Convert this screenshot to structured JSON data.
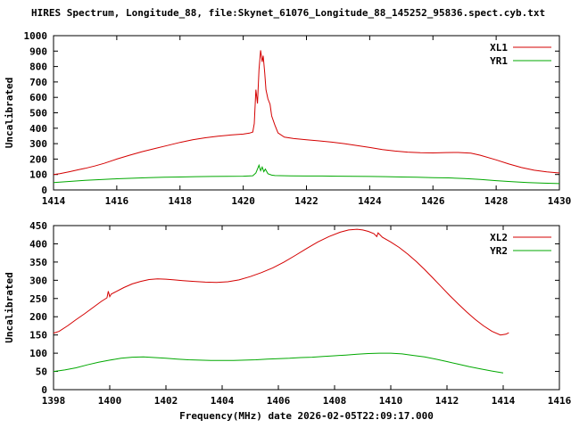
{
  "title": "HIRES Spectrum, Longitude_88, file:Skynet_61076_Longitude_88_145252_95836.spect.cyb.txt",
  "colors": {
    "red": "#d40000",
    "green": "#00a800",
    "axis": "#000000",
    "background": "#ffffff"
  },
  "chart_data": [
    {
      "type": "line",
      "title": "HIRES Spectrum, Longitude_88, file:Skynet_61076_Longitude_88_145252_95836.spect.cyb.txt",
      "xlabel": "",
      "ylabel": "Uncalibrated",
      "xlim": [
        1414,
        1430
      ],
      "ylim": [
        0,
        1000
      ],
      "xticks": [
        1414,
        1416,
        1418,
        1420,
        1422,
        1424,
        1426,
        1428,
        1430
      ],
      "yticks": [
        0,
        100,
        200,
        300,
        400,
        500,
        600,
        700,
        800,
        900,
        1000
      ],
      "grid": false,
      "legend_position": "top-right",
      "series": [
        {
          "name": "XL1",
          "color": "#d40000",
          "points": [
            [
              1414.0,
              100
            ],
            [
              1414.2,
              105
            ],
            [
              1414.5,
              118
            ],
            [
              1414.8,
              132
            ],
            [
              1415.0,
              140
            ],
            [
              1415.3,
              155
            ],
            [
              1415.6,
              172
            ],
            [
              1416.0,
              200
            ],
            [
              1416.4,
              225
            ],
            [
              1416.8,
              248
            ],
            [
              1417.2,
              268
            ],
            [
              1417.6,
              288
            ],
            [
              1418.0,
              308
            ],
            [
              1418.4,
              325
            ],
            [
              1418.8,
              338
            ],
            [
              1419.2,
              348
            ],
            [
              1419.6,
              356
            ],
            [
              1420.0,
              362
            ],
            [
              1420.2,
              368
            ],
            [
              1420.3,
              375
            ],
            [
              1420.35,
              430
            ],
            [
              1420.4,
              650
            ],
            [
              1420.45,
              560
            ],
            [
              1420.5,
              780
            ],
            [
              1420.55,
              905
            ],
            [
              1420.6,
              830
            ],
            [
              1420.63,
              870
            ],
            [
              1420.68,
              760
            ],
            [
              1420.72,
              650
            ],
            [
              1420.78,
              590
            ],
            [
              1420.85,
              555
            ],
            [
              1420.9,
              480
            ],
            [
              1421.0,
              420
            ],
            [
              1421.1,
              370
            ],
            [
              1421.3,
              342
            ],
            [
              1421.6,
              333
            ],
            [
              1422.0,
              325
            ],
            [
              1422.4,
              318
            ],
            [
              1422.8,
              310
            ],
            [
              1423.2,
              300
            ],
            [
              1423.6,
              288
            ],
            [
              1424.0,
              275
            ],
            [
              1424.4,
              262
            ],
            [
              1424.8,
              252
            ],
            [
              1425.2,
              245
            ],
            [
              1425.6,
              241
            ],
            [
              1426.0,
              240
            ],
            [
              1426.4,
              242
            ],
            [
              1426.8,
              243
            ],
            [
              1427.2,
              238
            ],
            [
              1427.5,
              225
            ],
            [
              1428.0,
              195
            ],
            [
              1428.4,
              168
            ],
            [
              1428.8,
              145
            ],
            [
              1429.2,
              128
            ],
            [
              1429.6,
              117
            ],
            [
              1430.0,
              110
            ]
          ]
        },
        {
          "name": "YR1",
          "color": "#00a800",
          "points": [
            [
              1414.0,
              48
            ],
            [
              1414.5,
              55
            ],
            [
              1415.0,
              62
            ],
            [
              1415.5,
              67
            ],
            [
              1416.0,
              72
            ],
            [
              1416.5,
              76
            ],
            [
              1417.0,
              79
            ],
            [
              1417.5,
              82
            ],
            [
              1418.0,
              84
            ],
            [
              1418.5,
              86
            ],
            [
              1419.0,
              87
            ],
            [
              1419.5,
              88
            ],
            [
              1420.0,
              89
            ],
            [
              1420.3,
              92
            ],
            [
              1420.4,
              110
            ],
            [
              1420.45,
              135
            ],
            [
              1420.5,
              160
            ],
            [
              1420.55,
              125
            ],
            [
              1420.6,
              148
            ],
            [
              1420.65,
              118
            ],
            [
              1420.7,
              135
            ],
            [
              1420.78,
              105
            ],
            [
              1420.9,
              96
            ],
            [
              1421.0,
              93
            ],
            [
              1421.5,
              91
            ],
            [
              1422.0,
              90
            ],
            [
              1422.5,
              90
            ],
            [
              1423.0,
              89
            ],
            [
              1423.5,
              88
            ],
            [
              1424.0,
              87
            ],
            [
              1424.5,
              86
            ],
            [
              1425.0,
              84
            ],
            [
              1425.5,
              82
            ],
            [
              1426.0,
              80
            ],
            [
              1426.5,
              78
            ],
            [
              1427.0,
              74
            ],
            [
              1427.5,
              68
            ],
            [
              1428.0,
              60
            ],
            [
              1428.5,
              53
            ],
            [
              1429.0,
              48
            ],
            [
              1429.5,
              44
            ],
            [
              1430.0,
              41
            ]
          ]
        }
      ]
    },
    {
      "type": "line",
      "title": "",
      "xlabel": "Frequency(MHz) date 2026-02-05T22:09:17.000",
      "ylabel": "Uncalibrated",
      "xlim": [
        1398,
        1416
      ],
      "ylim": [
        0,
        450
      ],
      "xticks": [
        1398,
        1400,
        1402,
        1404,
        1406,
        1408,
        1410,
        1412,
        1414,
        1416
      ],
      "yticks": [
        0,
        50,
        100,
        150,
        200,
        250,
        300,
        350,
        400,
        450
      ],
      "grid": false,
      "legend_position": "top-right",
      "series": [
        {
          "name": "XL2",
          "color": "#d40000",
          "points": [
            [
              1398.0,
              155
            ],
            [
              1398.2,
              160
            ],
            [
              1398.5,
              175
            ],
            [
              1398.8,
              192
            ],
            [
              1399.1,
              208
            ],
            [
              1399.4,
              225
            ],
            [
              1399.7,
              242
            ],
            [
              1399.9,
              252
            ],
            [
              1399.95,
              270
            ],
            [
              1400.0,
              255
            ],
            [
              1400.05,
              262
            ],
            [
              1400.2,
              268
            ],
            [
              1400.5,
              280
            ],
            [
              1400.8,
              290
            ],
            [
              1401.1,
              297
            ],
            [
              1401.4,
              302
            ],
            [
              1401.7,
              304
            ],
            [
              1402.0,
              303
            ],
            [
              1402.3,
              301
            ],
            [
              1402.6,
              299
            ],
            [
              1403.0,
              297
            ],
            [
              1403.4,
              295
            ],
            [
              1403.8,
              294
            ],
            [
              1404.2,
              296
            ],
            [
              1404.6,
              301
            ],
            [
              1405.0,
              310
            ],
            [
              1405.4,
              321
            ],
            [
              1405.8,
              334
            ],
            [
              1406.2,
              350
            ],
            [
              1406.6,
              368
            ],
            [
              1407.0,
              387
            ],
            [
              1407.4,
              405
            ],
            [
              1407.8,
              420
            ],
            [
              1408.2,
              432
            ],
            [
              1408.5,
              438
            ],
            [
              1408.8,
              440
            ],
            [
              1409.0,
              438
            ],
            [
              1409.2,
              434
            ],
            [
              1409.4,
              428
            ],
            [
              1409.5,
              420
            ],
            [
              1409.55,
              430
            ],
            [
              1409.7,
              418
            ],
            [
              1410.0,
              405
            ],
            [
              1410.3,
              390
            ],
            [
              1410.6,
              372
            ],
            [
              1410.9,
              352
            ],
            [
              1411.2,
              330
            ],
            [
              1411.5,
              306
            ],
            [
              1411.8,
              282
            ],
            [
              1412.1,
              258
            ],
            [
              1412.4,
              235
            ],
            [
              1412.7,
              213
            ],
            [
              1413.0,
              193
            ],
            [
              1413.3,
              175
            ],
            [
              1413.6,
              160
            ],
            [
              1413.9,
              150
            ],
            [
              1414.1,
              152
            ],
            [
              1414.2,
              156
            ]
          ]
        },
        {
          "name": "YR2",
          "color": "#00a800",
          "points": [
            [
              1398.0,
              50
            ],
            [
              1398.4,
              54
            ],
            [
              1398.8,
              60
            ],
            [
              1399.2,
              68
            ],
            [
              1399.6,
              75
            ],
            [
              1400.0,
              81
            ],
            [
              1400.4,
              86
            ],
            [
              1400.8,
              89
            ],
            [
              1401.2,
              90
            ],
            [
              1401.6,
              88
            ],
            [
              1402.0,
              86
            ],
            [
              1402.4,
              84
            ],
            [
              1402.8,
              82
            ],
            [
              1403.2,
              81
            ],
            [
              1403.6,
              80
            ],
            [
              1404.0,
              80
            ],
            [
              1404.4,
              80
            ],
            [
              1404.8,
              81
            ],
            [
              1405.2,
              82
            ],
            [
              1405.6,
              84
            ],
            [
              1406.0,
              85
            ],
            [
              1406.4,
              86
            ],
            [
              1406.8,
              88
            ],
            [
              1407.2,
              89
            ],
            [
              1407.6,
              91
            ],
            [
              1408.0,
              93
            ],
            [
              1408.4,
              95
            ],
            [
              1408.8,
              97
            ],
            [
              1409.2,
              99
            ],
            [
              1409.6,
              100
            ],
            [
              1410.0,
              100
            ],
            [
              1410.4,
              98
            ],
            [
              1410.8,
              94
            ],
            [
              1411.2,
              90
            ],
            [
              1411.6,
              84
            ],
            [
              1412.0,
              77
            ],
            [
              1412.4,
              70
            ],
            [
              1412.8,
              63
            ],
            [
              1413.2,
              57
            ],
            [
              1413.6,
              51
            ],
            [
              1414.0,
              46
            ]
          ]
        }
      ]
    }
  ]
}
